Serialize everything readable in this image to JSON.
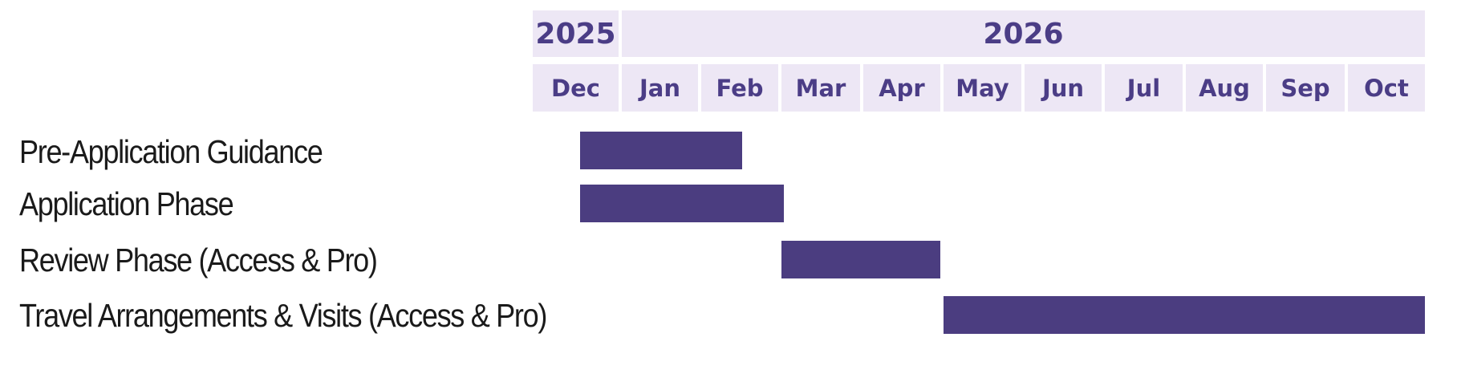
{
  "colors": {
    "header_bg": "#ede7f5",
    "header_text": "#4b3d86",
    "bar": "#4b3d80",
    "label_text": "#1a1a1a"
  },
  "chart_data": {
    "type": "gantt",
    "title": "",
    "years": [
      {
        "label": "2025",
        "start": "2025-12-01",
        "end": "2025-12-31"
      },
      {
        "label": "2026",
        "start": "2026-01-01",
        "end": "2026-10-31"
      }
    ],
    "months": [
      "Dec",
      "Jan",
      "Feb",
      "Mar",
      "Apr",
      "May",
      "Jun",
      "Jul",
      "Aug",
      "Sep",
      "Oct"
    ],
    "tasks": [
      {
        "label": "Pre-Application Guidance",
        "start": "2025-12-18",
        "end": "2026-02-15"
      },
      {
        "label": "Application Phase",
        "start": "2025-12-18",
        "end": "2026-03-01"
      },
      {
        "label": "Review Phase (Access & Pro)",
        "start": "2026-03-01",
        "end": "2026-04-30"
      },
      {
        "label": "Travel Arrangements & Visits (Access & Pro)",
        "start": "2026-05-01",
        "end": "2026-10-31"
      }
    ]
  }
}
